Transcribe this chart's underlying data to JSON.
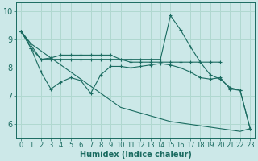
{
  "xlabel": "Humidex (Indice chaleur)",
  "bg_color": "#cce8e8",
  "line_color": "#1a6b60",
  "grid_color": "#b0d8d0",
  "xlim": [
    -0.5,
    23.5
  ],
  "ylim": [
    5.5,
    10.3
  ],
  "yticks": [
    6,
    7,
    8,
    9,
    10
  ],
  "xticks": [
    0,
    1,
    2,
    3,
    4,
    5,
    6,
    7,
    8,
    9,
    10,
    11,
    12,
    13,
    14,
    15,
    16,
    17,
    18,
    19,
    20,
    21,
    22,
    23
  ],
  "series_diagonal_x": [
    0,
    1,
    2,
    3,
    4,
    5,
    6,
    7,
    8,
    9,
    10,
    11,
    12,
    13,
    14,
    15,
    16,
    17,
    18,
    19,
    20,
    21,
    22,
    23
  ],
  "series_diagonal_y": [
    9.3,
    8.85,
    8.6,
    8.35,
    8.1,
    7.85,
    7.6,
    7.35,
    7.1,
    6.85,
    6.6,
    6.5,
    6.4,
    6.3,
    6.2,
    6.1,
    6.05,
    6.0,
    5.95,
    5.9,
    5.85,
    5.8,
    5.75,
    5.85
  ],
  "series_flat_x": [
    0,
    2,
    3,
    4,
    5,
    6,
    7,
    8,
    9,
    10,
    11,
    12,
    13,
    14,
    15,
    16,
    17,
    18,
    19,
    20
  ],
  "series_flat_y": [
    9.3,
    8.3,
    8.3,
    8.3,
    8.3,
    8.3,
    8.3,
    8.3,
    8.3,
    8.3,
    8.2,
    8.2,
    8.2,
    8.2,
    8.2,
    8.2,
    8.2,
    8.2,
    8.2,
    8.2
  ],
  "series_wiggly_x": [
    0,
    1,
    2,
    3,
    4,
    5,
    6,
    7,
    8,
    9,
    10,
    11,
    12,
    13,
    14,
    15,
    16,
    17,
    18,
    19,
    20,
    21,
    22,
    23
  ],
  "series_wiggly_y": [
    9.3,
    8.7,
    7.85,
    7.25,
    7.5,
    7.65,
    7.55,
    7.1,
    7.75,
    8.05,
    8.05,
    8.0,
    8.05,
    8.1,
    8.15,
    8.1,
    8.0,
    7.85,
    7.65,
    7.6,
    7.65,
    7.25,
    7.2,
    5.85
  ],
  "series_spike_x": [
    0,
    1,
    2,
    3,
    4,
    5,
    6,
    7,
    8,
    9,
    10,
    11,
    12,
    13,
    14,
    15,
    16,
    17,
    18,
    19,
    20,
    21,
    22,
    23
  ],
  "series_spike_y": [
    9.3,
    8.7,
    8.3,
    8.35,
    8.45,
    8.45,
    8.45,
    8.45,
    8.45,
    8.45,
    8.3,
    8.3,
    8.3,
    8.3,
    8.3,
    9.85,
    9.35,
    8.75,
    8.2,
    7.75,
    7.6,
    7.3,
    7.2,
    5.85
  ],
  "font_size_label": 7,
  "font_size_tick": 6.5
}
